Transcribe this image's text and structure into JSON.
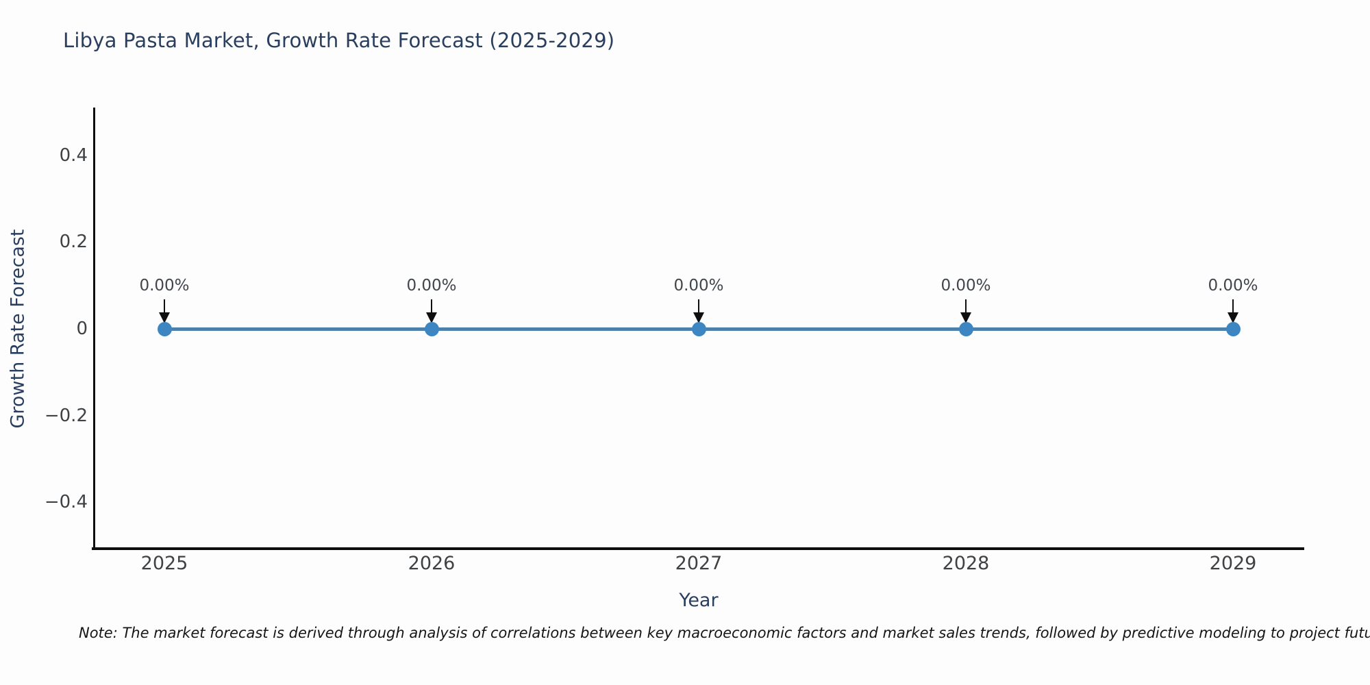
{
  "chart_data": {
    "type": "line",
    "title": "Libya Pasta Market, Growth Rate Forecast (2025-2029)",
    "xlabel": "Year",
    "ylabel": "Growth Rate Forecast",
    "categories": [
      "2025",
      "2026",
      "2027",
      "2028",
      "2029"
    ],
    "series": [
      {
        "name": "Growth Rate Forecast",
        "values": [
          0,
          0,
          0,
          0,
          0
        ]
      }
    ],
    "point_labels": [
      "0.00%",
      "0.00%",
      "0.00%",
      "0.00%",
      "0.00%"
    ],
    "ytick_labels": [
      "0.4",
      "0.2",
      "0",
      "−0.2",
      "−0.4"
    ],
    "ytick_values": [
      0.4,
      0.2,
      0,
      -0.2,
      -0.4
    ],
    "ylim": [
      -0.5,
      0.5
    ],
    "grid": false,
    "legend_position": "none",
    "line_color": "#4d80aa",
    "marker_color": "#3e86c1",
    "arrow_color": "#0f0f0f",
    "title_color": "#2a3f5f",
    "tick_color": "#3f4245",
    "note": "Note: The market forecast is derived through analysis of correlations between key macroeconomic factors and market sales trends, followed by predictive modeling to project future sales."
  }
}
